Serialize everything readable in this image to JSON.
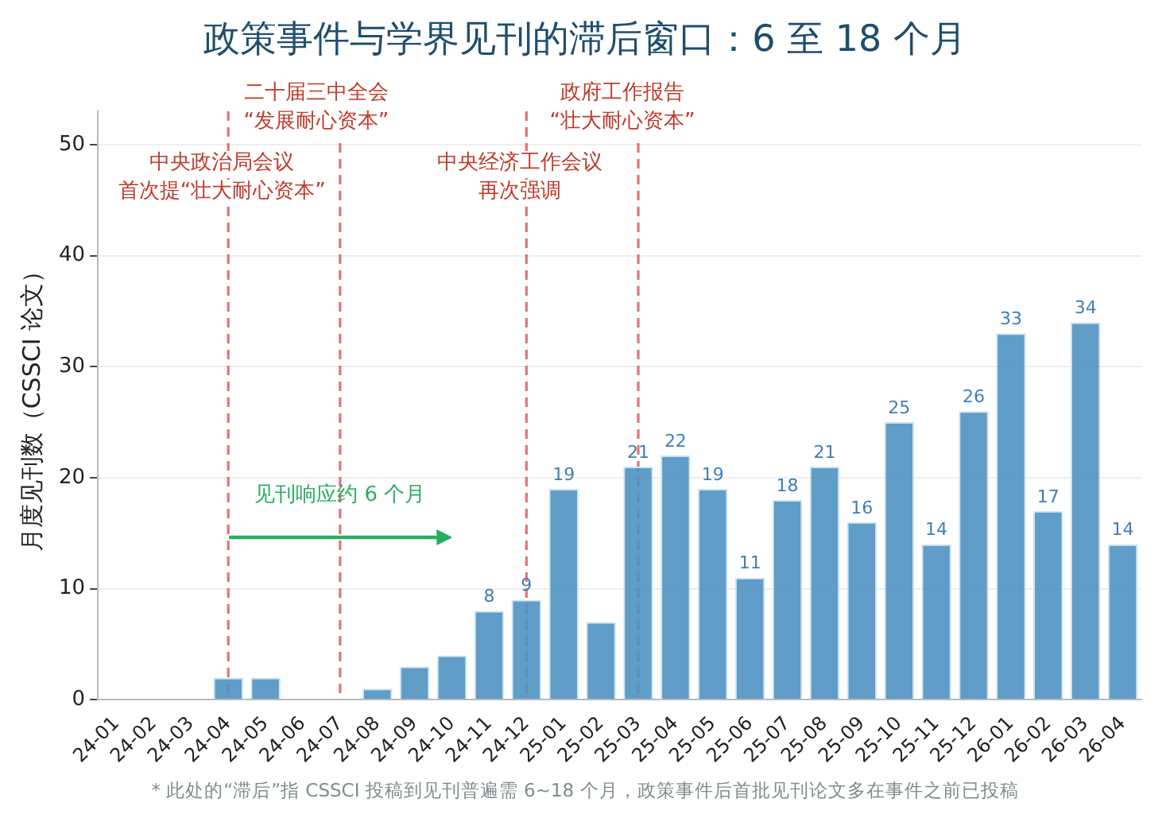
{
  "chart_data": {
    "type": "bar",
    "title": "政策事件与学界见刊的滞后窗口：6 至 18 个月",
    "ylabel": "月度见刊数（CSSCI 论文）",
    "categories": [
      "24-01",
      "24-02",
      "24-03",
      "24-04",
      "24-05",
      "24-06",
      "24-07",
      "24-08",
      "24-09",
      "24-10",
      "24-11",
      "24-12",
      "25-01",
      "25-02",
      "25-03",
      "25-04",
      "25-05",
      "25-06",
      "25-07",
      "25-08",
      "25-09",
      "25-10",
      "25-11",
      "25-12",
      "26-01",
      "26-02",
      "26-03",
      "26-04"
    ],
    "series": [
      {
        "color": "#4a90c2",
        "values": [
          0,
          0,
          0,
          2,
          2,
          0,
          0,
          1,
          3,
          4,
          8,
          9,
          19,
          7,
          21,
          22,
          19,
          11,
          18,
          21,
          16,
          25,
          14,
          26,
          33,
          17,
          34,
          14
        ],
        "value_labels": [
          null,
          null,
          null,
          null,
          null,
          null,
          null,
          null,
          null,
          null,
          "8",
          "9",
          "19",
          null,
          "21",
          "22",
          "19",
          "11",
          "18",
          "21",
          "16",
          "25",
          "14",
          "26",
          "33",
          "17",
          "34",
          "14"
        ]
      }
    ],
    "ylim": [
      0,
      53
    ],
    "yticks": [
      0,
      10,
      20,
      30,
      40,
      50
    ],
    "grid": "y",
    "legend": false,
    "ref_lines": [
      {
        "axis": "x",
        "value": "24-04",
        "label": "中央政治局会议首次提“壮大耐心资本”",
        "color": "#d9534f",
        "line_style": "dashed"
      },
      {
        "axis": "x",
        "value": "24-07",
        "label": "二十届三中全会“发展耐心资本”",
        "color": "#d9534f",
        "line_style": "dashed"
      },
      {
        "axis": "x",
        "value": "24-12",
        "label": "中央经济工作会议再次强调",
        "color": "#d9534f",
        "line_style": "dashed"
      },
      {
        "axis": "x",
        "value": "25-03",
        "label": "政府工作报告“壮大耐心资本”",
        "color": "#d9534f",
        "line_style": "dashed"
      }
    ],
    "annotations": [
      {
        "text": "见刊响应约 6 个月",
        "x": "24-07",
        "y": 17.5
      },
      "* 此处的“滞后”指 CSSCI 投稿到见刊普遍需 6~18 个月，政策事件后首批见刊论文多在事件之前已投稿"
    ]
  }
}
